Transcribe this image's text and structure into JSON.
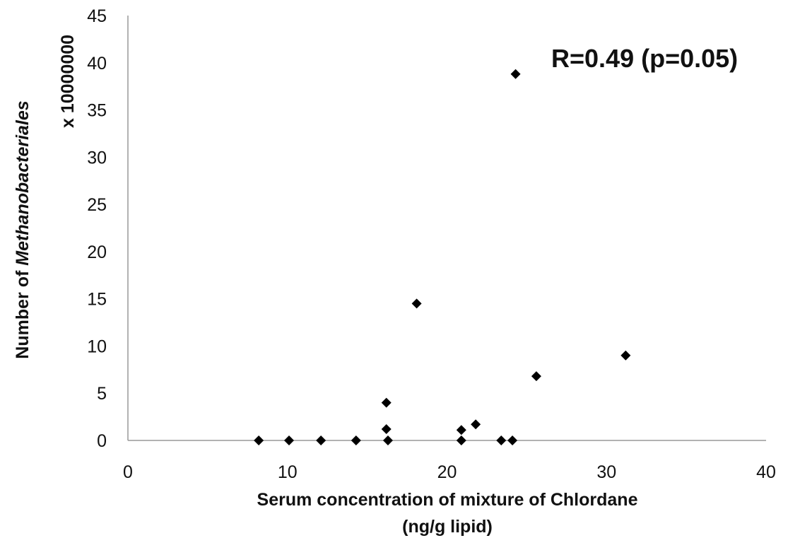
{
  "chart_data": {
    "type": "scatter",
    "title": "",
    "annotation": "R=0.49 (p=0.05)",
    "xlabel_line1": "Serum concentration of mixture of Chlordane",
    "xlabel_line2": "(ng/g lipid)",
    "ylabel_prefix": "Number of ",
    "ylabel_italic": "Methanobacteriales",
    "ylabel_line2": "x 10000000",
    "xlim": [
      0,
      40
    ],
    "ylim": [
      0,
      45
    ],
    "x_ticks": [
      "0",
      "10",
      "20",
      "30",
      "40"
    ],
    "y_ticks": [
      "0",
      "5",
      "10",
      "15",
      "20",
      "25",
      "30",
      "35",
      "40",
      "45"
    ],
    "grid": false,
    "legend": "none",
    "marker": "diamond",
    "marker_color": "#000000",
    "points": [
      {
        "x": 8.2,
        "y": 0
      },
      {
        "x": 10.1,
        "y": 0
      },
      {
        "x": 12.1,
        "y": 0
      },
      {
        "x": 14.3,
        "y": 0
      },
      {
        "x": 16.2,
        "y": 4.0
      },
      {
        "x": 16.2,
        "y": 1.2
      },
      {
        "x": 16.3,
        "y": 0
      },
      {
        "x": 18.1,
        "y": 14.5
      },
      {
        "x": 20.9,
        "y": 1.1
      },
      {
        "x": 20.9,
        "y": 0
      },
      {
        "x": 21.8,
        "y": 1.7
      },
      {
        "x": 23.4,
        "y": 0
      },
      {
        "x": 24.1,
        "y": 0
      },
      {
        "x": 24.3,
        "y": 38.8
      },
      {
        "x": 25.6,
        "y": 6.8
      },
      {
        "x": 31.2,
        "y": 9.0
      }
    ]
  }
}
